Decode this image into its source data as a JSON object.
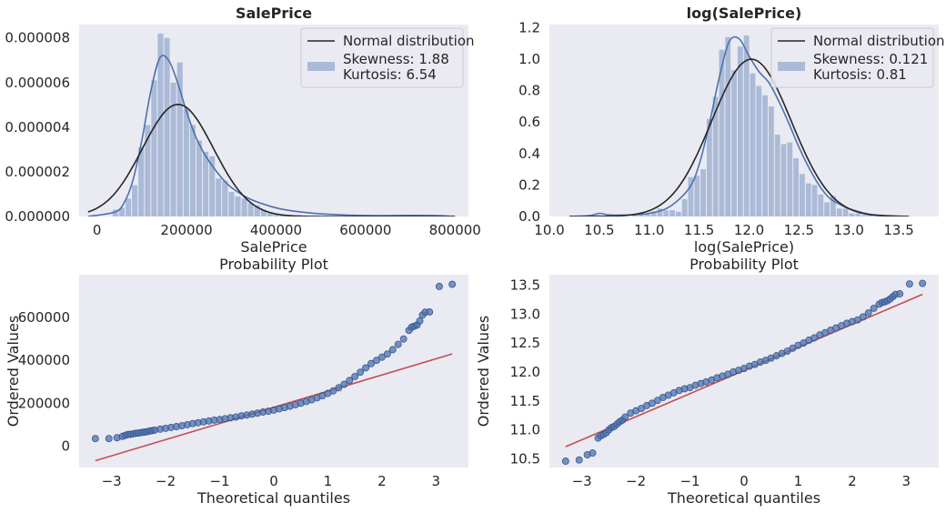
{
  "colors": {
    "axes_bg": "#eaeaf2",
    "hist": "#4c72b0",
    "kde": "#4c72b0",
    "normal": "#262626",
    "ref_line": "#c44e52",
    "points": "#4c72b0"
  },
  "chart_data": [
    {
      "type": "bar",
      "title": "SalePrice",
      "xlabel": "SalePrice",
      "ylabel": "",
      "xlim": [
        -40000,
        830000
      ],
      "ylim": [
        0,
        8.6e-06
      ],
      "xticks": [
        0,
        200000,
        400000,
        600000,
        800000
      ],
      "xtick_labels": [
        "0",
        "200000",
        "400000",
        "600000",
        "800000"
      ],
      "yticks": [
        0,
        2e-06,
        4e-06,
        6e-06,
        8e-06
      ],
      "ytick_labels": [
        "0.000000",
        "0.000002",
        "0.000004",
        "0.000006",
        "0.000008"
      ],
      "hist": {
        "start": 34900,
        "bin_width": 14400,
        "values": [
          3e-07,
          4e-07,
          8e-07,
          1.4e-06,
          3.1e-06,
          4.1e-06,
          6.1e-06,
          8.2e-06,
          8e-06,
          6e-06,
          6.9e-06,
          4.8e-06,
          4.1e-06,
          3.4e-06,
          2.9e-06,
          2.7e-06,
          1.7e-06,
          1.6e-06,
          1.1e-06,
          9e-07,
          8e-07,
          6e-07,
          5e-07,
          3e-07,
          2e-07,
          1e-07,
          8e-08,
          6e-08,
          4e-08,
          3e-08,
          2e-08,
          1e-08,
          2e-08,
          1e-08,
          0.0,
          1e-08,
          0.0,
          0.0,
          0.0,
          0.0,
          0.0,
          0.0,
          0.0,
          0.0,
          0.0,
          0.0,
          0.0,
          0.0,
          1e-08,
          1e-08
        ]
      },
      "kde": {
        "x": [
          -20000,
          40000,
          60000,
          80000,
          100000,
          120000,
          140000,
          160000,
          180000,
          200000,
          220000,
          240000,
          260000,
          280000,
          300000,
          340000,
          380000,
          420000,
          480000,
          550000,
          620000,
          700000,
          760000,
          800000
        ],
        "y": [
          0.0,
          2e-07,
          6e-07,
          1.6e-06,
          3.4e-06,
          5.6e-06,
          7.1e-06,
          7e-06,
          6e-06,
          4.7e-06,
          3.6e-06,
          2.8e-06,
          2.2e-06,
          1.7e-06,
          1.3e-06,
          8e-07,
          5e-07,
          3e-07,
          1.5e-07,
          7e-08,
          4e-08,
          5e-08,
          4e-08,
          0.0
        ]
      },
      "normal_fit": {
        "mu": 180921,
        "sigma": 79415
      },
      "legend": {
        "position": "upper right",
        "entries": [
          "Normal distribution",
          "Skewness: 1.88\nKurtosis: 6.54"
        ]
      }
    },
    {
      "type": "bar",
      "title": "log(SalePrice)",
      "xlabel": "log(SalePrice)",
      "ylabel": "",
      "xlim": [
        10.0,
        13.9
      ],
      "ylim": [
        0,
        1.22
      ],
      "xticks": [
        10.0,
        10.5,
        11.0,
        11.5,
        12.0,
        12.5,
        13.0,
        13.5
      ],
      "xtick_labels": [
        "10.0",
        "10.5",
        "11.0",
        "11.5",
        "12.0",
        "12.5",
        "13.0",
        "13.5"
      ],
      "yticks": [
        0.0,
        0.2,
        0.4,
        0.6,
        0.8,
        1.0,
        1.2
      ],
      "ytick_labels": [
        "0.0",
        "0.2",
        "0.4",
        "0.6",
        "0.8",
        "1.0",
        "1.2"
      ],
      "hist": {
        "start": 10.46,
        "bin_width": 0.062,
        "values": [
          0.01,
          0.0,
          0.0,
          0.01,
          0.0,
          0.0,
          0.01,
          0.02,
          0.02,
          0.03,
          0.05,
          0.04,
          0.04,
          0.03,
          0.11,
          0.25,
          0.26,
          0.3,
          0.62,
          0.76,
          1.06,
          1.14,
          0.93,
          1.08,
          1.15,
          0.91,
          0.83,
          0.77,
          0.7,
          0.52,
          0.46,
          0.47,
          0.37,
          0.27,
          0.21,
          0.2,
          0.14,
          0.09,
          0.13,
          0.05,
          0.05,
          0.02,
          0.02,
          0.01,
          0.01
        ]
      },
      "kde": {
        "x": [
          10.2,
          10.4,
          10.5,
          10.6,
          10.8,
          11.0,
          11.2,
          11.4,
          11.5,
          11.6,
          11.7,
          11.8,
          11.9,
          12.0,
          12.1,
          12.2,
          12.3,
          12.4,
          12.5,
          12.6,
          12.7,
          12.8,
          12.9,
          13.0,
          13.2,
          13.4,
          13.6
        ],
        "y": [
          0.0,
          0.005,
          0.02,
          0.01,
          0.01,
          0.02,
          0.06,
          0.18,
          0.33,
          0.58,
          0.88,
          1.11,
          1.13,
          1.02,
          0.92,
          0.85,
          0.73,
          0.59,
          0.44,
          0.31,
          0.2,
          0.12,
          0.08,
          0.05,
          0.015,
          0.005,
          0.0
        ]
      },
      "normal_fit": {
        "mu": 12.024,
        "sigma": 0.399
      },
      "legend": {
        "position": "upper right",
        "entries": [
          "Normal distribution",
          "Skewness: 0.121\nKurtosis: 0.81"
        ]
      }
    },
    {
      "type": "scatter",
      "title": "Probability Plot",
      "xlabel": "Theoretical quantiles",
      "ylabel": "Ordered Values",
      "xlim": [
        -3.6,
        3.6
      ],
      "ylim": [
        -100000,
        800000
      ],
      "xticks": [
        -3,
        -2,
        -1,
        0,
        1,
        2,
        3
      ],
      "xtick_labels": [
        "−3",
        "−2",
        "−1",
        "0",
        "1",
        "2",
        "3"
      ],
      "yticks": [
        0,
        200000,
        400000,
        600000
      ],
      "ytick_labels": [
        "0",
        "200000",
        "400000",
        "600000"
      ],
      "fit_line": {
        "x": [
          -3.3,
          3.3
        ],
        "y": [
          -68000,
          430000
        ]
      },
      "points": {
        "x": [
          -3.3,
          -3.05,
          -2.9,
          -2.8,
          -2.75,
          -2.7,
          -2.65,
          -2.6,
          -2.55,
          -2.5,
          -2.45,
          -2.4,
          -2.35,
          -2.3,
          -2.25,
          -2.2,
          -2.1,
          -2.0,
          -1.9,
          -1.8,
          -1.7,
          -1.6,
          -1.5,
          -1.4,
          -1.3,
          -1.2,
          -1.1,
          -1.0,
          -0.9,
          -0.8,
          -0.7,
          -0.6,
          -0.5,
          -0.4,
          -0.3,
          -0.2,
          -0.1,
          0.0,
          0.1,
          0.2,
          0.3,
          0.4,
          0.5,
          0.6,
          0.7,
          0.8,
          0.9,
          1.0,
          1.1,
          1.2,
          1.3,
          1.4,
          1.5,
          1.6,
          1.7,
          1.8,
          1.9,
          2.0,
          2.1,
          2.2,
          2.3,
          2.4,
          2.5,
          2.55,
          2.6,
          2.65,
          2.7,
          2.75,
          2.8,
          2.88,
          3.06,
          3.3
        ],
        "y": [
          35000,
          35000,
          39000,
          45000,
          50000,
          54000,
          55000,
          57000,
          60000,
          61000,
          63000,
          65000,
          67000,
          70000,
          72000,
          75000,
          79000,
          83000,
          87000,
          91000,
          95000,
          100000,
          105000,
          109000,
          113000,
          117000,
          121000,
          124000,
          128000,
          132000,
          136000,
          141000,
          145000,
          149000,
          154000,
          159000,
          163000,
          168000,
          174000,
          180000,
          186000,
          193000,
          200000,
          208000,
          216000,
          225000,
          235000,
          246000,
          258000,
          272000,
          288000,
          306000,
          325000,
          345000,
          365000,
          385000,
          400000,
          415000,
          430000,
          450000,
          475000,
          500000,
          540000,
          555000,
          560000,
          565000,
          584000,
          612000,
          625000,
          626000,
          745000,
          755000
        ]
      }
    },
    {
      "type": "scatter",
      "title": "Probability Plot",
      "xlabel": "Theoretical quantiles",
      "ylabel": "Ordered Values",
      "xlim": [
        -3.6,
        3.6
      ],
      "ylim": [
        10.35,
        13.68
      ],
      "xticks": [
        -3,
        -2,
        -1,
        0,
        1,
        2,
        3
      ],
      "xtick_labels": [
        "−3",
        "−2",
        "−1",
        "0",
        "1",
        "2",
        "3"
      ],
      "yticks": [
        10.5,
        11.0,
        11.5,
        12.0,
        12.5,
        13.0,
        13.5
      ],
      "ytick_labels": [
        "10.5",
        "11.0",
        "11.5",
        "12.0",
        "12.5",
        "13.0",
        "13.5"
      ],
      "fit_line": {
        "x": [
          -3.3,
          3.3
        ],
        "y": [
          10.71,
          13.34
        ]
      },
      "points": {
        "x": [
          -3.3,
          -3.05,
          -2.9,
          -2.8,
          -2.7,
          -2.65,
          -2.6,
          -2.55,
          -2.5,
          -2.45,
          -2.4,
          -2.35,
          -2.3,
          -2.25,
          -2.2,
          -2.1,
          -2.0,
          -1.9,
          -1.8,
          -1.7,
          -1.6,
          -1.5,
          -1.4,
          -1.3,
          -1.2,
          -1.1,
          -1.0,
          -0.9,
          -0.8,
          -0.7,
          -0.6,
          -0.5,
          -0.4,
          -0.3,
          -0.2,
          -0.1,
          0.0,
          0.1,
          0.2,
          0.3,
          0.4,
          0.5,
          0.6,
          0.7,
          0.8,
          0.9,
          1.0,
          1.1,
          1.2,
          1.3,
          1.4,
          1.5,
          1.6,
          1.7,
          1.8,
          1.9,
          2.0,
          2.1,
          2.2,
          2.3,
          2.4,
          2.5,
          2.55,
          2.6,
          2.65,
          2.7,
          2.75,
          2.8,
          2.88,
          3.06,
          3.3
        ],
        "y": [
          10.46,
          10.48,
          10.57,
          10.6,
          10.86,
          10.9,
          10.92,
          10.95,
          11.0,
          11.04,
          11.06,
          11.1,
          11.14,
          11.17,
          11.22,
          11.29,
          11.33,
          11.37,
          11.42,
          11.46,
          11.51,
          11.56,
          11.6,
          11.64,
          11.68,
          11.71,
          11.73,
          11.77,
          11.8,
          11.83,
          11.86,
          11.9,
          11.93,
          11.96,
          12.0,
          12.03,
          12.06,
          12.1,
          12.13,
          12.17,
          12.2,
          12.24,
          12.28,
          12.32,
          12.36,
          12.41,
          12.46,
          12.5,
          12.55,
          12.59,
          12.64,
          12.68,
          12.72,
          12.76,
          12.8,
          12.84,
          12.87,
          12.9,
          12.95,
          13.02,
          13.1,
          13.17,
          13.2,
          13.21,
          13.23,
          13.26,
          13.3,
          13.34,
          13.35,
          13.52,
          13.53
        ]
      }
    }
  ]
}
